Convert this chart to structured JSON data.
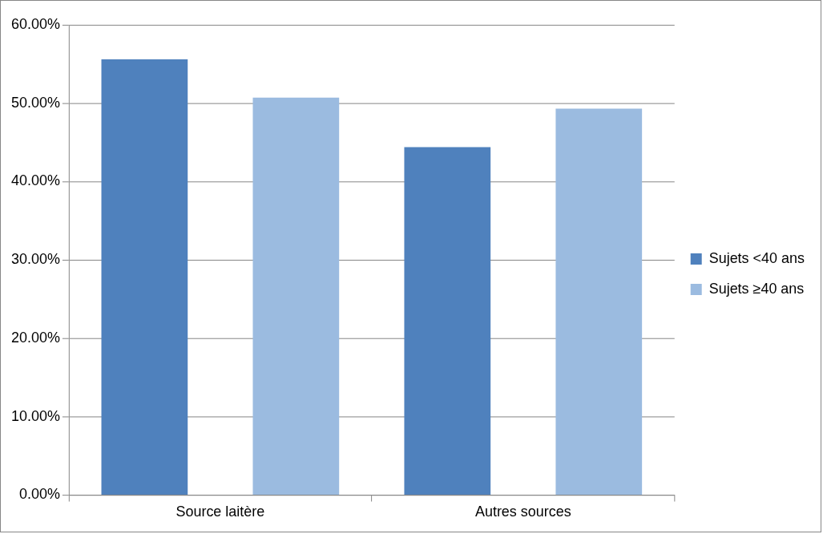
{
  "chart_data": {
    "type": "bar",
    "categories": [
      "Source laitère",
      "Autres sources"
    ],
    "series": [
      {
        "name": "Sujets <40 ans",
        "color": "#4f81bd",
        "values": [
          55.6,
          44.4
        ]
      },
      {
        "name": "Sujets ≥40 ans",
        "color": "#9bbbe0",
        "values": [
          50.7,
          49.3
        ]
      }
    ],
    "ylim": [
      0,
      60
    ],
    "yticks": [
      {
        "value": 0,
        "label": "0.00%"
      },
      {
        "value": 10,
        "label": "10.00%"
      },
      {
        "value": 20,
        "label": "20.00%"
      },
      {
        "value": 30,
        "label": "30.00%"
      },
      {
        "value": 40,
        "label": "40.00%"
      },
      {
        "value": 50,
        "label": "50.00%"
      },
      {
        "value": 60,
        "label": "60.00%"
      }
    ],
    "grid": "y",
    "legend": "right"
  }
}
